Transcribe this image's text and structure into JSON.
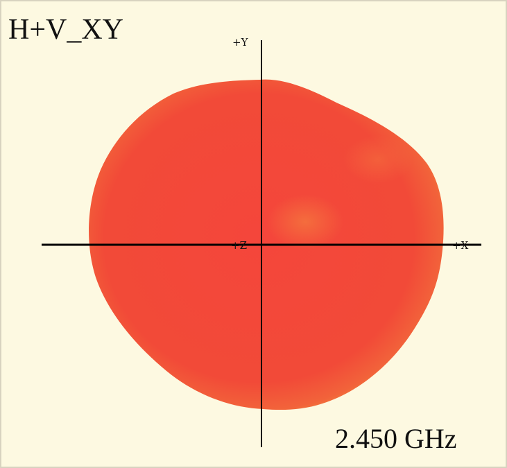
{
  "title": "H+V_XY",
  "axes": {
    "y": "+Y",
    "z": "+Z",
    "x": "+X"
  },
  "frequency": "2.450 GHz"
}
